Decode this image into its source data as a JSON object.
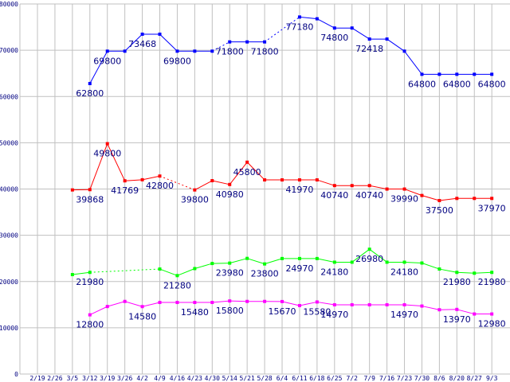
{
  "chart_data": {
    "type": "line",
    "title": "",
    "xlabel": "",
    "ylabel": "",
    "ylim": [
      0,
      80000
    ],
    "yticks": [
      "0",
      "10000",
      "20000",
      "30000",
      "40000",
      "50000",
      "60000",
      "70000",
      "80000"
    ],
    "grid": true,
    "categories": [
      "2/19",
      "2/26",
      "3/5",
      "3/12",
      "3/19",
      "3/26",
      "4/2",
      "4/9",
      "4/16",
      "4/23",
      "4/30",
      "5/14",
      "5/21",
      "5/28",
      "6/4",
      "6/11",
      "6/18",
      "6/25",
      "7/2",
      "7/9",
      "7/16",
      "7/23",
      "7/30",
      "8/6",
      "8/20",
      "8/27",
      "9/3"
    ],
    "label_color": "#000080",
    "series": [
      {
        "name": "blue",
        "color": "#0000ff",
        "values": [
          null,
          null,
          null,
          62800,
          69800,
          69800,
          73468,
          73468,
          69800,
          69800,
          69800,
          71800,
          71800,
          71800,
          null,
          77180,
          76800,
          74800,
          74800,
          72418,
          72418,
          69800,
          64800,
          64800,
          64800,
          64800,
          64800
        ],
        "labels": [
          null,
          null,
          null,
          "62800",
          "69800",
          null,
          "73468",
          null,
          "69800",
          null,
          null,
          "71800",
          null,
          "71800",
          null,
          "77180",
          null,
          "74800",
          null,
          "72418",
          null,
          null,
          "64800",
          null,
          "64800",
          null,
          "64800"
        ],
        "dashed_segments": [
          [
            10,
            11
          ],
          [
            13,
            15
          ]
        ]
      },
      {
        "name": "red",
        "color": "#ff0000",
        "values": [
          null,
          null,
          39800,
          39868,
          49800,
          41769,
          42000,
          42800,
          null,
          39800,
          41800,
          40980,
          45800,
          41970,
          41970,
          41970,
          41970,
          40740,
          40740,
          40740,
          39990,
          39990,
          38600,
          37500,
          37970,
          37970,
          37970
        ],
        "labels": [
          null,
          null,
          null,
          "39868",
          "49800",
          "41769",
          null,
          "42800",
          null,
          "39800",
          null,
          "40980",
          "45800",
          null,
          null,
          "41970",
          null,
          "40740",
          null,
          "40740",
          null,
          "39990",
          null,
          "37500",
          null,
          null,
          "37970"
        ],
        "dashed_segments": [
          [
            7,
            9
          ]
        ]
      },
      {
        "name": "green",
        "color": "#00ff00",
        "values": [
          null,
          null,
          21500,
          21980,
          null,
          null,
          null,
          22700,
          21280,
          22800,
          23900,
          23980,
          25000,
          23800,
          24970,
          24970,
          24970,
          24180,
          24180,
          26980,
          24180,
          24180,
          24000,
          22700,
          21980,
          21800,
          21980
        ],
        "labels": [
          null,
          null,
          null,
          "21980",
          null,
          null,
          null,
          null,
          "21280",
          null,
          null,
          "23980",
          null,
          "23800",
          null,
          "24970",
          null,
          "24180",
          null,
          "26980",
          null,
          "24180",
          null,
          null,
          "21980",
          null,
          "21980"
        ],
        "dashed_segments": [
          [
            3,
            7
          ]
        ]
      },
      {
        "name": "magenta",
        "color": "#ff00ff",
        "values": [
          null,
          null,
          null,
          12800,
          14600,
          15700,
          14580,
          15480,
          15480,
          15480,
          15480,
          15800,
          15700,
          15700,
          15670,
          14800,
          15580,
          14970,
          14970,
          14970,
          14970,
          14970,
          14700,
          13900,
          13970,
          12980,
          12980
        ],
        "labels": [
          null,
          null,
          null,
          "12800",
          null,
          null,
          "14580",
          null,
          null,
          "15480",
          null,
          "15800",
          null,
          null,
          "15670",
          null,
          "15580",
          "14970",
          null,
          null,
          null,
          "14970",
          null,
          null,
          "13970",
          null,
          "12980"
        ],
        "dashed_segments": []
      }
    ]
  }
}
